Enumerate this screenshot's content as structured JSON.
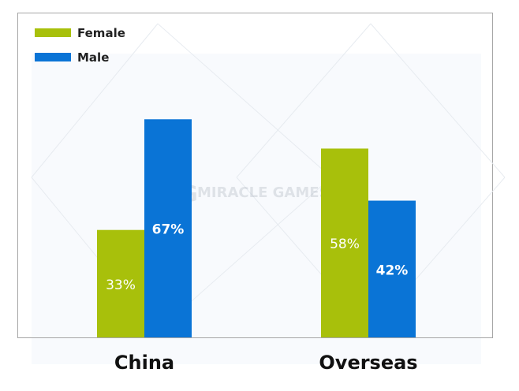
{
  "chart_data": {
    "type": "bar",
    "categories": [
      "China",
      "Overseas"
    ],
    "series": [
      {
        "name": "Female",
        "values": [
          33,
          58
        ],
        "labels": [
          "33%",
          "58%"
        ],
        "color": "#a8c00b"
      },
      {
        "name": "Male",
        "values": [
          67,
          42
        ],
        "labels": [
          "67%",
          "42%"
        ],
        "color": "#0a74d6"
      }
    ],
    "ylim": [
      0,
      100
    ],
    "legend_position": "top-left",
    "grid": false
  },
  "watermark": {
    "text": "MIRACLE GAMES",
    "monogram": "MG"
  },
  "colors": {
    "plot_background": "#f8fafd",
    "border": "#a6a6a6"
  }
}
